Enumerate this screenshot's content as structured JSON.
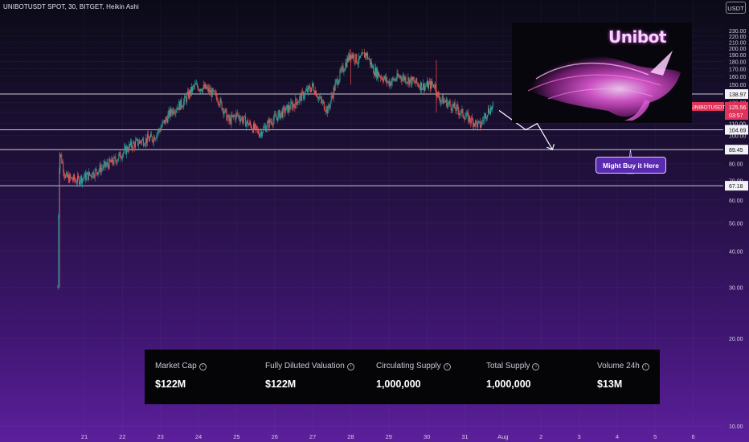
{
  "header": {
    "symbol_line": "UNIBOTUSDT SPOT, 30, BITGET, Heikin Ashi",
    "currency_button": "USDT"
  },
  "logo": {
    "brand_text": "Unibot"
  },
  "annotation": {
    "callout_text": "Might Buy it Here"
  },
  "metrics": [
    {
      "label": "Market Cap",
      "value": "$122M"
    },
    {
      "label": "Fully Diluted Valuation",
      "value": "$122M"
    },
    {
      "label": "Circulating Supply",
      "value": "1,000,000"
    },
    {
      "label": "Total Supply",
      "value": "1,000,000"
    },
    {
      "label": "Volume 24h",
      "value": "$13M"
    }
  ],
  "colors": {
    "background_top": "#0b0b18",
    "background_bottom": "#5c1f9c",
    "up_candle": "#26a69a",
    "down_candle": "#ef5350",
    "level_line": "#e8e8f0",
    "price_badge": "#e0335a",
    "callout_bg": "#5a2ab0"
  },
  "chart_data": {
    "type": "candlestick",
    "symbol": "UNIBOTUSDT",
    "interval": "30",
    "exchange": "BITGET",
    "style": "Heikin Ashi",
    "y_axis_ticks": [
      10,
      20,
      30,
      40,
      50,
      60,
      70,
      80,
      90,
      100,
      110,
      120,
      130,
      140,
      150,
      160,
      170,
      180,
      190,
      200,
      210,
      220,
      230
    ],
    "y_axis_scale": "log",
    "ylim": [
      10,
      240
    ],
    "x_axis_ticks": [
      "21",
      "22",
      "23",
      "24",
      "25",
      "26",
      "27",
      "28",
      "29",
      "30",
      "31",
      "Aug",
      "2",
      "3",
      "4",
      "5",
      "6"
    ],
    "horizontal_levels": [
      "138.97",
      "104.69",
      "89.45",
      "67.18"
    ],
    "last_price": {
      "symbol": "UNIBOTUSDT",
      "price": "125.56",
      "countdown": "03:57"
    },
    "price_path": [
      {
        "day": 20.3,
        "price": 30
      },
      {
        "day": 20.35,
        "price": 88
      },
      {
        "day": 20.5,
        "price": 72
      },
      {
        "day": 20.8,
        "price": 70
      },
      {
        "day": 21.2,
        "price": 74
      },
      {
        "day": 21.5,
        "price": 78
      },
      {
        "day": 21.8,
        "price": 82
      },
      {
        "day": 22.2,
        "price": 92
      },
      {
        "day": 22.5,
        "price": 96
      },
      {
        "day": 22.8,
        "price": 98
      },
      {
        "day": 23.0,
        "price": 106
      },
      {
        "day": 23.3,
        "price": 122
      },
      {
        "day": 23.6,
        "price": 130
      },
      {
        "day": 23.9,
        "price": 148
      },
      {
        "day": 24.2,
        "price": 145
      },
      {
        "day": 24.5,
        "price": 135
      },
      {
        "day": 24.8,
        "price": 112
      },
      {
        "day": 25.0,
        "price": 118
      },
      {
        "day": 25.3,
        "price": 110
      },
      {
        "day": 25.6,
        "price": 102
      },
      {
        "day": 25.9,
        "price": 112
      },
      {
        "day": 26.2,
        "price": 120
      },
      {
        "day": 26.5,
        "price": 128
      },
      {
        "day": 26.8,
        "price": 140
      },
      {
        "day": 27.0,
        "price": 148
      },
      {
        "day": 27.2,
        "price": 132
      },
      {
        "day": 27.4,
        "price": 122
      },
      {
        "day": 27.6,
        "price": 150
      },
      {
        "day": 27.8,
        "price": 170
      },
      {
        "day": 28.0,
        "price": 192
      },
      {
        "day": 28.2,
        "price": 180
      },
      {
        "day": 28.4,
        "price": 192
      },
      {
        "day": 28.6,
        "price": 168
      },
      {
        "day": 28.8,
        "price": 160
      },
      {
        "day": 29.0,
        "price": 152
      },
      {
        "day": 29.3,
        "price": 160
      },
      {
        "day": 29.6,
        "price": 154
      },
      {
        "day": 29.9,
        "price": 148
      },
      {
        "day": 30.2,
        "price": 150
      },
      {
        "day": 30.3,
        "price": 135
      },
      {
        "day": 30.6,
        "price": 128
      },
      {
        "day": 30.9,
        "price": 120
      },
      {
        "day": 31.2,
        "price": 112
      },
      {
        "day": 31.4,
        "price": 108
      },
      {
        "day": 31.6,
        "price": 122
      },
      {
        "day": 31.75,
        "price": 125.56
      }
    ],
    "projection_path": [
      {
        "day": 31.9,
        "price": 122
      },
      {
        "day": 32.6,
        "price": 104.69
      },
      {
        "day": 32.9,
        "price": 110
      },
      {
        "day": 33.3,
        "price": 89.45
      }
    ],
    "callout_pointer": {
      "day": 35.35,
      "price": 89.45
    }
  }
}
